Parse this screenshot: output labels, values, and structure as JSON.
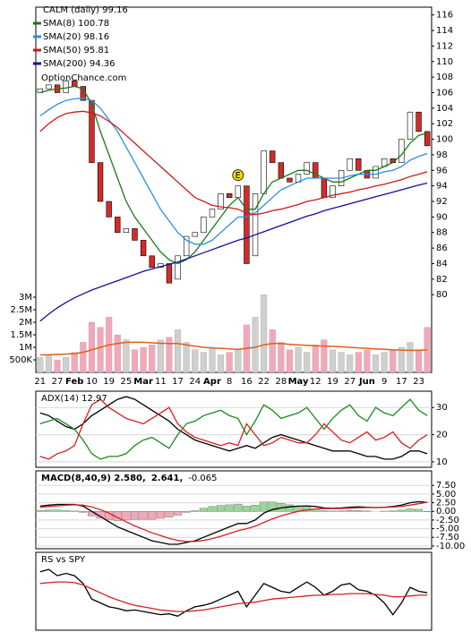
{
  "chart_data": [
    {
      "type": "candlestick",
      "title": "CALM (daily) 99.16",
      "watermark": "OptionChance.com",
      "categories": [
        "21",
        null,
        "27",
        null,
        "Feb",
        null,
        "10",
        null,
        "19",
        null,
        "25",
        null,
        "Mar",
        null,
        "11",
        null,
        "17",
        null,
        "24",
        null,
        "Apr",
        null,
        "8",
        null,
        "16",
        null,
        "22",
        null,
        "28",
        null,
        "May",
        null,
        "12",
        null,
        "19",
        null,
        "27",
        null,
        "Jun",
        null,
        "9",
        null,
        "17",
        null,
        "23",
        null
      ],
      "open": [
        106,
        106.5,
        107,
        106,
        107.5,
        106.8,
        105,
        97,
        92,
        90,
        88,
        88.5,
        87,
        85,
        83.5,
        84,
        82,
        85,
        87.5,
        88,
        90,
        91,
        93,
        92.5,
        94,
        85,
        93,
        98.5,
        97,
        95,
        94.5,
        95.5,
        97,
        95,
        92.5,
        94,
        96,
        97.5,
        96,
        95,
        96.5,
        97.5,
        97,
        100,
        103.5,
        101
      ],
      "close": [
        106.5,
        107,
        106,
        107.5,
        106.8,
        105,
        97,
        92,
        90,
        88,
        88.5,
        87,
        85,
        83.5,
        84,
        81.5,
        85,
        87.5,
        88,
        90,
        91,
        93,
        92.5,
        94,
        84,
        93,
        98.5,
        97,
        95,
        94.5,
        95.5,
        97,
        95,
        92.5,
        94,
        96,
        97.5,
        96,
        95,
        96.5,
        97.5,
        97,
        100,
        103.5,
        101,
        99.16
      ],
      "up_color": "#ffffff",
      "down_color": "#d42a2a",
      "ylim": [
        70,
        117
      ],
      "yticks": [
        80,
        82,
        84,
        86,
        88,
        90,
        92,
        94,
        96,
        98,
        100,
        102,
        104,
        106,
        108,
        110,
        112,
        114,
        116
      ],
      "series": [
        {
          "name": "SMA(8) 100.78",
          "color": "#1a7a1a",
          "values": [
            106,
            106.3,
            106.5,
            106.6,
            106.8,
            106.5,
            104.5,
            101,
            98,
            95,
            92,
            90,
            88.5,
            87,
            85.5,
            84.5,
            84,
            84.5,
            85.5,
            87,
            88.5,
            90,
            91.5,
            92.5,
            91,
            91,
            93,
            94.5,
            95,
            95.5,
            96,
            96,
            95.5,
            95,
            94.5,
            94.5,
            95,
            95.5,
            96,
            96,
            96.5,
            97,
            98,
            99.5,
            100.5,
            100.78
          ]
        },
        {
          "name": "SMA(20) 98.16",
          "color": "#2a8fe0",
          "values": [
            103,
            103.8,
            104.5,
            105,
            105.2,
            105.3,
            105,
            104,
            102.5,
            101,
            99,
            97,
            95,
            93,
            91,
            89.5,
            88,
            87,
            86.5,
            86.5,
            87,
            88,
            89,
            90,
            90,
            90.5,
            91.5,
            92.5,
            93.5,
            94,
            94.5,
            95,
            95,
            95,
            95,
            95,
            95.3,
            95.5,
            95.5,
            95.5,
            95.8,
            96,
            96.5,
            97.3,
            97.8,
            98.16
          ]
        },
        {
          "name": "SMA(50) 95.81",
          "color": "#d01818",
          "values": [
            101,
            102,
            102.8,
            103.3,
            103.5,
            103.6,
            103.4,
            103,
            102.3,
            101.5,
            100.5,
            99.5,
            98.5,
            97.5,
            96.5,
            95.5,
            94.5,
            93.5,
            92.5,
            92,
            91.5,
            91.3,
            91.2,
            91,
            90.5,
            90.3,
            90.5,
            90.8,
            91,
            91.3,
            91.6,
            92,
            92.2,
            92.5,
            92.8,
            93,
            93.2,
            93.5,
            93.7,
            94,
            94.2,
            94.5,
            94.8,
            95.2,
            95.5,
            95.81
          ]
        },
        {
          "name": "SMA(200) 94.36",
          "color": "#1010a0",
          "values": [
            76.6,
            77.5,
            78.3,
            79,
            79.6,
            80.1,
            80.6,
            81,
            81.4,
            81.8,
            82.2,
            82.6,
            83,
            83.3,
            83.6,
            83.9,
            84.2,
            84.6,
            85,
            85.4,
            85.8,
            86.2,
            86.6,
            87,
            87.3,
            87.7,
            88.1,
            88.5,
            88.9,
            89.3,
            89.7,
            90.1,
            90.4,
            90.8,
            91.1,
            91.4,
            91.7,
            92,
            92.3,
            92.6,
            92.9,
            93.2,
            93.5,
            93.8,
            94.1,
            94.36
          ]
        }
      ],
      "annotations": [
        {
          "text": "E",
          "x": 23
        }
      ],
      "volume": {
        "up_color": "#cfcfcf",
        "down_color": "#f2a8b8",
        "y2lim": [
          0,
          14570000
        ],
        "y2ticks": [
          {
            "value": 500000,
            "label": "500K"
          },
          {
            "value": 1000000,
            "label": "1M"
          },
          {
            "value": 1500000,
            "label": "1.5M"
          },
          {
            "value": 2000000,
            "label": "2M"
          },
          {
            "value": 2500000,
            "label": "2.5M"
          },
          {
            "value": 3000000,
            "label": "3M"
          }
        ],
        "values": [
          600000,
          700000,
          500000,
          600000,
          800000,
          1200000,
          2000000,
          1800000,
          2200000,
          1500000,
          1300000,
          900000,
          1000000,
          1100000,
          1300000,
          1400000,
          1700000,
          1200000,
          900000,
          800000,
          1000000,
          700000,
          800000,
          900000,
          1900000,
          2200000,
          3100000,
          1700000,
          1200000,
          900000,
          1000000,
          800000,
          1100000,
          1300000,
          900000,
          800000,
          700000,
          800000,
          900000,
          700000,
          800000,
          900000,
          1000000,
          1200000,
          900000,
          1800000
        ],
        "average": {
          "color": "#e0601a",
          "values": [
            700000,
            700000,
            720000,
            730000,
            750000,
            800000,
            900000,
            1000000,
            1100000,
            1150000,
            1200000,
            1200000,
            1200000,
            1180000,
            1160000,
            1150000,
            1150000,
            1100000,
            1050000,
            1000000,
            980000,
            960000,
            940000,
            920000,
            960000,
            1000000,
            1100000,
            1150000,
            1150000,
            1120000,
            1100000,
            1080000,
            1060000,
            1050000,
            1040000,
            1020000,
            1000000,
            980000,
            960000,
            940000,
            920000,
            900000,
            890000,
            880000,
            880000,
            900000
          ]
        }
      }
    },
    {
      "type": "line",
      "ylim": [
        8,
        36
      ],
      "yticks": [
        10,
        20,
        30
      ],
      "grid": true,
      "series": [
        {
          "name": "ADX(14) 12.97",
          "color": "#000000",
          "values": [
            28,
            27,
            25,
            23,
            22,
            24,
            27,
            29,
            31,
            33,
            34,
            33,
            31,
            29,
            27,
            25,
            22,
            20,
            18,
            17,
            16,
            15,
            14,
            15,
            16,
            15,
            17,
            19,
            20,
            19,
            18,
            17,
            16,
            15,
            14,
            14,
            14,
            13,
            12,
            12,
            11,
            11,
            12,
            14,
            14,
            12.97
          ]
        },
        {
          "color": "#1a8a1a",
          "values": [
            24,
            25,
            26,
            24,
            22,
            18,
            13,
            11,
            12,
            12,
            13,
            16,
            18,
            19,
            17,
            15,
            20,
            24,
            25,
            27,
            28,
            29,
            27,
            26,
            20,
            25,
            31,
            29,
            26,
            27,
            28,
            30,
            26,
            22,
            26,
            29,
            31,
            27,
            25,
            30,
            28,
            27,
            30,
            33,
            29,
            27
          ]
        },
        {
          "color": "#d42020",
          "values": [
            12,
            11,
            13,
            14,
            16,
            24,
            31,
            33,
            30,
            28,
            26,
            25,
            24,
            26,
            28,
            30,
            24,
            21,
            19,
            18,
            17,
            16,
            17,
            16,
            24,
            20,
            16,
            17,
            19,
            18,
            17,
            17,
            20,
            24,
            21,
            18,
            17,
            19,
            21,
            18,
            19,
            21,
            17,
            15,
            18,
            20
          ]
        }
      ]
    },
    {
      "type": "macd",
      "ylim": [
        -10.8,
        11.7
      ],
      "grid": true,
      "yticks": [
        {
          "value": 7.5,
          "label": "7.50"
        },
        {
          "value": 5,
          "label": "5.00"
        },
        {
          "value": 2.5,
          "label": "2.50"
        },
        {
          "value": 0,
          "label": "0.00"
        },
        {
          "value": -2.5,
          "label": "-2.50"
        },
        {
          "value": -5,
          "label": "-5.00"
        },
        {
          "value": -7.5,
          "label": "-7.50"
        },
        {
          "value": -10,
          "label": "-10.00"
        }
      ],
      "series": [
        {
          "name": "-0.065",
          "type": "bar",
          "color": "#9ad69a",
          "negative_color": "#f2a8b8",
          "label_color": "#1f3fbf",
          "values": [
            0.3,
            0.4,
            0.4,
            0.2,
            0.1,
            -0.3,
            -1.3,
            -2.0,
            -2.5,
            -2.7,
            -2.5,
            -2.3,
            -2.3,
            -2.3,
            -2.0,
            -1.7,
            -1.1,
            -0.3,
            0.2,
            0.9,
            1.4,
            1.7,
            1.9,
            2.1,
            1.5,
            1.8,
            2.7,
            2.7,
            2.3,
            1.9,
            1.5,
            1.2,
            0.7,
            0.2,
            0.1,
            0.15,
            0.25,
            0.25,
            0.1,
            0,
            0.05,
            0.15,
            0.35,
            0.7,
            0.6,
            -0.065
          ]
        },
        {
          "name": "MACD(8,40,9) 2.580,",
          "color": "#000000",
          "values": [
            1.5,
            1.8,
            2.0,
            2.0,
            2.0,
            1.5,
            0,
            -1.5,
            -3,
            -4.5,
            -5.5,
            -6.5,
            -7.5,
            -8.5,
            -9,
            -9.5,
            -9.5,
            -9,
            -8.5,
            -7.5,
            -6.5,
            -5.5,
            -4.5,
            -3.5,
            -3.5,
            -2.5,
            -0.5,
            0.5,
            1,
            1.3,
            1.5,
            1.6,
            1.4,
            1.0,
            0.9,
            1.0,
            1.2,
            1.3,
            1.2,
            1.1,
            1.2,
            1.4,
            1.8,
            2.5,
            2.8,
            2.58
          ]
        },
        {
          "name": "2.641,",
          "color": "#d42020",
          "values": [
            1.2,
            1.4,
            1.6,
            1.8,
            1.9,
            1.8,
            1.3,
            0.5,
            -0.5,
            -1.8,
            -3,
            -4.2,
            -5.2,
            -6.2,
            -7,
            -7.8,
            -8.4,
            -8.7,
            -8.7,
            -8.4,
            -7.9,
            -7.2,
            -6.4,
            -5.6,
            -5,
            -4.3,
            -3.2,
            -2.2,
            -1.3,
            -0.6,
            0,
            0.4,
            0.7,
            0.8,
            0.8,
            0.85,
            0.95,
            1.05,
            1.1,
            1.1,
            1.15,
            1.25,
            1.45,
            1.8,
            2.2,
            2.641
          ]
        }
      ]
    },
    {
      "type": "line",
      "title": "RS vs SPY",
      "ylim": [
        0,
        10
      ],
      "series": [
        {
          "color": "#000000",
          "values": [
            7.5,
            7.8,
            7,
            7.3,
            7,
            6,
            4,
            3.5,
            3,
            2.8,
            2.5,
            2.6,
            2.4,
            2.2,
            2.0,
            2.1,
            1.8,
            2.5,
            3,
            3.2,
            3.5,
            4,
            4.5,
            5,
            3,
            4.5,
            6,
            5.5,
            5,
            4.8,
            5.5,
            6.2,
            5.5,
            4.5,
            5,
            5.8,
            6,
            5.2,
            5,
            4.5,
            3.5,
            2,
            3.5,
            5.5,
            5,
            4.8
          ]
        },
        {
          "color": "#d42020",
          "values": [
            6,
            6.1,
            6.2,
            6.2,
            6.1,
            5.8,
            5.3,
            4.8,
            4.3,
            3.9,
            3.5,
            3.2,
            3.0,
            2.8,
            2.6,
            2.5,
            2.4,
            2.4,
            2.5,
            2.6,
            2.8,
            3.0,
            3.2,
            3.4,
            3.5,
            3.6,
            3.8,
            4.0,
            4.1,
            4.2,
            4.3,
            4.4,
            4.5,
            4.5,
            4.6,
            4.6,
            4.7,
            4.7,
            4.7,
            4.6,
            4.5,
            4.3,
            4.3,
            4.4,
            4.5,
            4.5
          ]
        }
      ]
    }
  ]
}
